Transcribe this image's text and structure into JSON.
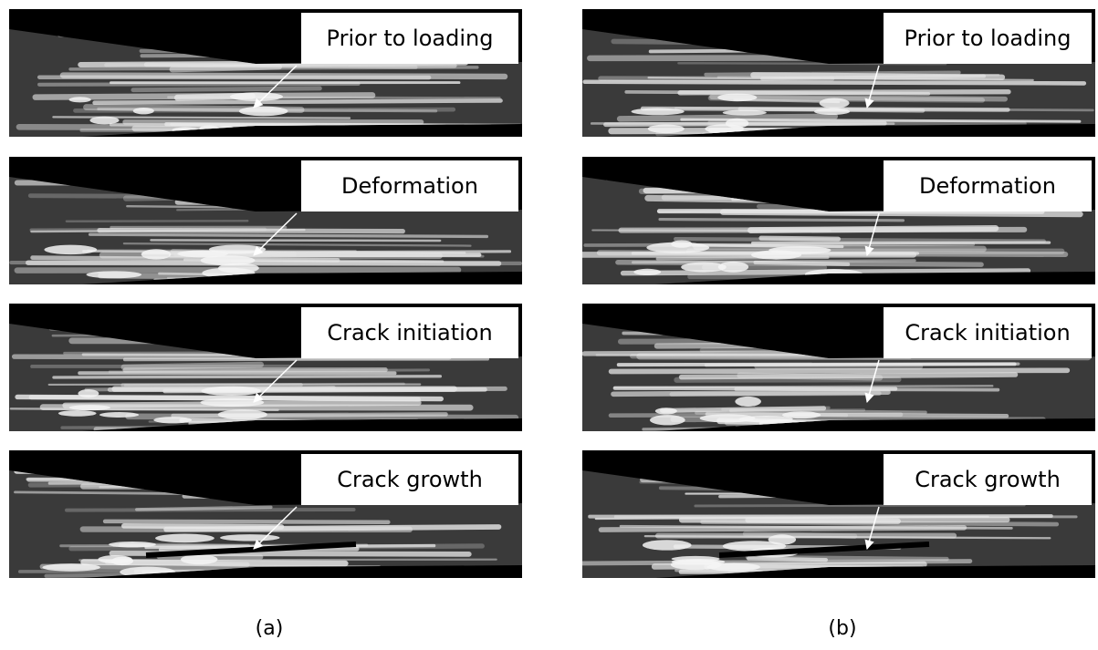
{
  "columns": [
    {
      "caption": "(a)",
      "frames": [
        "Prior to loading",
        "Deformation",
        "Crack initiation",
        "Crack growth"
      ]
    },
    {
      "caption": "(b)",
      "frames": [
        "Prior to loading",
        "Deformation",
        "Crack initiation",
        "Crack growth"
      ]
    }
  ]
}
